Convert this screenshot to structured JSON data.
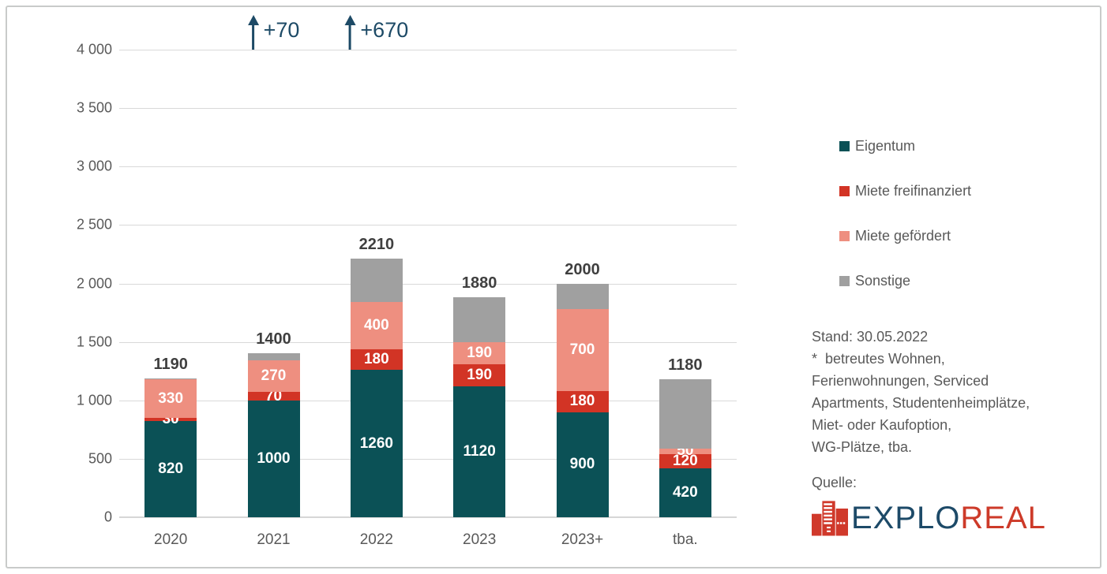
{
  "chart_data": {
    "type": "bar",
    "stacked": true,
    "title": "",
    "xlabel": "",
    "ylabel": "",
    "categories": [
      "2020",
      "2021",
      "2022",
      "2023",
      "2023+",
      "tba."
    ],
    "series": [
      {
        "name": "Eigentum",
        "color": "#0B5156",
        "values": [
          820,
          1000,
          1260,
          1120,
          900,
          420
        ],
        "show_value_labels": true
      },
      {
        "name": "Miete freifinanziert",
        "color": "#D23425",
        "values": [
          30,
          70,
          180,
          190,
          180,
          120
        ],
        "show_value_labels": true
      },
      {
        "name": "Miete gefördert",
        "color": "#EE8F80",
        "values": [
          330,
          270,
          400,
          190,
          700,
          50
        ],
        "show_value_labels": true
      },
      {
        "name": "Sonstige",
        "color": "#A0A0A0",
        "values": [
          10,
          60,
          370,
          380,
          220,
          590
        ],
        "show_value_labels": false
      }
    ],
    "totals": [
      1190,
      1400,
      2210,
      1880,
      2000,
      1180
    ],
    "ylim": [
      0,
      4000
    ],
    "y_ticks": [
      {
        "value": 0,
        "label": "0"
      },
      {
        "value": 500,
        "label": "500"
      },
      {
        "value": 1000,
        "label": "1 000"
      },
      {
        "value": 1500,
        "label": "1 500"
      },
      {
        "value": 2000,
        "label": "2 000"
      },
      {
        "value": 2500,
        "label": "2 500"
      },
      {
        "value": 3000,
        "label": "3 000"
      },
      {
        "value": 3500,
        "label": "3 500"
      },
      {
        "value": 4000,
        "label": "4 000"
      }
    ],
    "grid": true,
    "legend_position": "right",
    "annotations": [
      {
        "category": "2021",
        "label": "+70"
      },
      {
        "category": "2022",
        "label": "+670"
      }
    ],
    "annotation_color": "#1D4A66",
    "axis_text_color": "#595959",
    "total_label_color": "#3F3F3F"
  },
  "side": {
    "notes": [
      "Stand: 30.05.2022",
      "*  betreutes Wohnen,",
      "Ferienwohnungen, Serviced",
      "Apartments, Studentenheimplätze,",
      "Miet- oder Kaufoption,",
      "WG-Plätze, tba."
    ],
    "source_label": "Quelle:",
    "logo": {
      "part1": "EXPLO",
      "part2": "REAL",
      "part1_color": "#1D4A68",
      "part2_color": "#CD3A29",
      "icon_color": "#D0392B"
    }
  }
}
